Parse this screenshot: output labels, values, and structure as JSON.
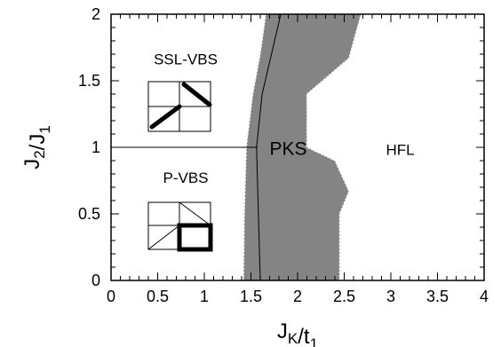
{
  "chart_data": {
    "type": "area",
    "xlabel": "J_K/t_1",
    "ylabel": "J_2/J_1",
    "xlim": [
      0,
      4
    ],
    "ylim": [
      0,
      2
    ],
    "xticks": [
      "0",
      "0.5",
      "1",
      "1.5",
      "2",
      "2.5",
      "3",
      "3.5",
      "4"
    ],
    "yticks": [
      "0",
      "0.5",
      "1",
      "1.5",
      "2"
    ],
    "phases": [
      {
        "name": "SSL-VBS",
        "x": 0.8,
        "y": 1.67
      },
      {
        "name": "P-VBS",
        "x": 0.8,
        "y": 0.78
      },
      {
        "name": "PKS",
        "x": 1.9,
        "y": 0.99
      },
      {
        "name": "HFL",
        "x": 3.1,
        "y": 0.99
      }
    ],
    "pks_region": {
      "left_boundary": [
        [
          1.42,
          0
        ],
        [
          1.43,
          0.5
        ],
        [
          1.45,
          1.0
        ],
        [
          1.52,
          1.4
        ],
        [
          1.6,
          1.7
        ],
        [
          1.66,
          2.0
        ]
      ],
      "right_boundary": [
        [
          2.45,
          0
        ],
        [
          2.45,
          0.5
        ],
        [
          2.55,
          0.67
        ],
        [
          2.4,
          0.9
        ],
        [
          2.1,
          1.0
        ],
        [
          2.1,
          1.4
        ],
        [
          2.55,
          1.67
        ],
        [
          2.68,
          2.0
        ]
      ]
    },
    "pks_center_line": [
      [
        1.6,
        0
      ],
      [
        1.58,
        0.5
      ],
      [
        1.56,
        1.0
      ],
      [
        1.62,
        1.4
      ],
      [
        1.72,
        1.7
      ],
      [
        1.82,
        2.0
      ]
    ],
    "vbs_boundary_line": [
      [
        0,
        1.0
      ],
      [
        1.57,
        1.0
      ]
    ]
  }
}
